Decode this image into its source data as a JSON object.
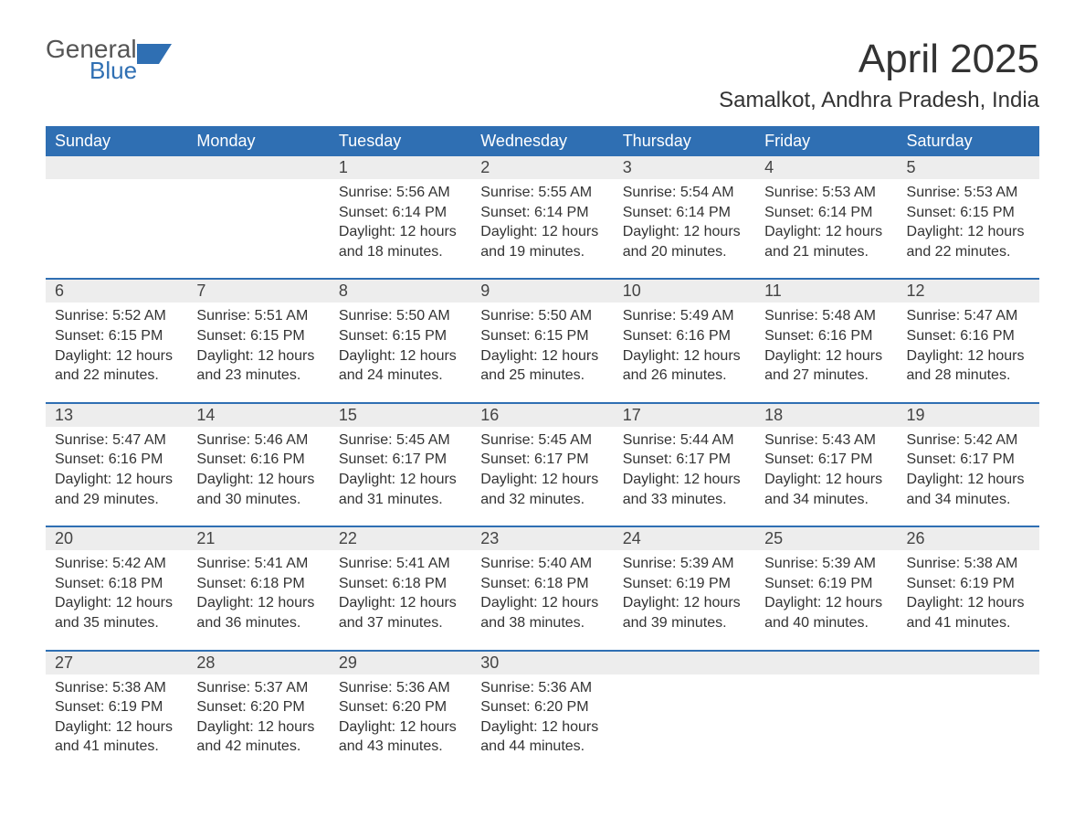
{
  "brand": {
    "line1": "General",
    "line2": "Blue",
    "accent_color": "#2f6fb3",
    "text_color": "#555555"
  },
  "title": "April 2025",
  "location": "Samalkot, Andhra Pradesh, India",
  "colors": {
    "header_bg": "#2f6fb3",
    "header_text": "#ffffff",
    "daynum_bg": "#ededed",
    "row_divider": "#2f6fb3",
    "body_text": "#333333",
    "page_bg": "#ffffff"
  },
  "weekdays": [
    "Sunday",
    "Monday",
    "Tuesday",
    "Wednesday",
    "Thursday",
    "Friday",
    "Saturday"
  ],
  "weeks": [
    [
      null,
      null,
      {
        "n": "1",
        "sunrise": "Sunrise: 5:56 AM",
        "sunset": "Sunset: 6:14 PM",
        "day1": "Daylight: 12 hours",
        "day2": "and 18 minutes."
      },
      {
        "n": "2",
        "sunrise": "Sunrise: 5:55 AM",
        "sunset": "Sunset: 6:14 PM",
        "day1": "Daylight: 12 hours",
        "day2": "and 19 minutes."
      },
      {
        "n": "3",
        "sunrise": "Sunrise: 5:54 AM",
        "sunset": "Sunset: 6:14 PM",
        "day1": "Daylight: 12 hours",
        "day2": "and 20 minutes."
      },
      {
        "n": "4",
        "sunrise": "Sunrise: 5:53 AM",
        "sunset": "Sunset: 6:14 PM",
        "day1": "Daylight: 12 hours",
        "day2": "and 21 minutes."
      },
      {
        "n": "5",
        "sunrise": "Sunrise: 5:53 AM",
        "sunset": "Sunset: 6:15 PM",
        "day1": "Daylight: 12 hours",
        "day2": "and 22 minutes."
      }
    ],
    [
      {
        "n": "6",
        "sunrise": "Sunrise: 5:52 AM",
        "sunset": "Sunset: 6:15 PM",
        "day1": "Daylight: 12 hours",
        "day2": "and 22 minutes."
      },
      {
        "n": "7",
        "sunrise": "Sunrise: 5:51 AM",
        "sunset": "Sunset: 6:15 PM",
        "day1": "Daylight: 12 hours",
        "day2": "and 23 minutes."
      },
      {
        "n": "8",
        "sunrise": "Sunrise: 5:50 AM",
        "sunset": "Sunset: 6:15 PM",
        "day1": "Daylight: 12 hours",
        "day2": "and 24 minutes."
      },
      {
        "n": "9",
        "sunrise": "Sunrise: 5:50 AM",
        "sunset": "Sunset: 6:15 PM",
        "day1": "Daylight: 12 hours",
        "day2": "and 25 minutes."
      },
      {
        "n": "10",
        "sunrise": "Sunrise: 5:49 AM",
        "sunset": "Sunset: 6:16 PM",
        "day1": "Daylight: 12 hours",
        "day2": "and 26 minutes."
      },
      {
        "n": "11",
        "sunrise": "Sunrise: 5:48 AM",
        "sunset": "Sunset: 6:16 PM",
        "day1": "Daylight: 12 hours",
        "day2": "and 27 minutes."
      },
      {
        "n": "12",
        "sunrise": "Sunrise: 5:47 AM",
        "sunset": "Sunset: 6:16 PM",
        "day1": "Daylight: 12 hours",
        "day2": "and 28 minutes."
      }
    ],
    [
      {
        "n": "13",
        "sunrise": "Sunrise: 5:47 AM",
        "sunset": "Sunset: 6:16 PM",
        "day1": "Daylight: 12 hours",
        "day2": "and 29 minutes."
      },
      {
        "n": "14",
        "sunrise": "Sunrise: 5:46 AM",
        "sunset": "Sunset: 6:16 PM",
        "day1": "Daylight: 12 hours",
        "day2": "and 30 minutes."
      },
      {
        "n": "15",
        "sunrise": "Sunrise: 5:45 AM",
        "sunset": "Sunset: 6:17 PM",
        "day1": "Daylight: 12 hours",
        "day2": "and 31 minutes."
      },
      {
        "n": "16",
        "sunrise": "Sunrise: 5:45 AM",
        "sunset": "Sunset: 6:17 PM",
        "day1": "Daylight: 12 hours",
        "day2": "and 32 minutes."
      },
      {
        "n": "17",
        "sunrise": "Sunrise: 5:44 AM",
        "sunset": "Sunset: 6:17 PM",
        "day1": "Daylight: 12 hours",
        "day2": "and 33 minutes."
      },
      {
        "n": "18",
        "sunrise": "Sunrise: 5:43 AM",
        "sunset": "Sunset: 6:17 PM",
        "day1": "Daylight: 12 hours",
        "day2": "and 34 minutes."
      },
      {
        "n": "19",
        "sunrise": "Sunrise: 5:42 AM",
        "sunset": "Sunset: 6:17 PM",
        "day1": "Daylight: 12 hours",
        "day2": "and 34 minutes."
      }
    ],
    [
      {
        "n": "20",
        "sunrise": "Sunrise: 5:42 AM",
        "sunset": "Sunset: 6:18 PM",
        "day1": "Daylight: 12 hours",
        "day2": "and 35 minutes."
      },
      {
        "n": "21",
        "sunrise": "Sunrise: 5:41 AM",
        "sunset": "Sunset: 6:18 PM",
        "day1": "Daylight: 12 hours",
        "day2": "and 36 minutes."
      },
      {
        "n": "22",
        "sunrise": "Sunrise: 5:41 AM",
        "sunset": "Sunset: 6:18 PM",
        "day1": "Daylight: 12 hours",
        "day2": "and 37 minutes."
      },
      {
        "n": "23",
        "sunrise": "Sunrise: 5:40 AM",
        "sunset": "Sunset: 6:18 PM",
        "day1": "Daylight: 12 hours",
        "day2": "and 38 minutes."
      },
      {
        "n": "24",
        "sunrise": "Sunrise: 5:39 AM",
        "sunset": "Sunset: 6:19 PM",
        "day1": "Daylight: 12 hours",
        "day2": "and 39 minutes."
      },
      {
        "n": "25",
        "sunrise": "Sunrise: 5:39 AM",
        "sunset": "Sunset: 6:19 PM",
        "day1": "Daylight: 12 hours",
        "day2": "and 40 minutes."
      },
      {
        "n": "26",
        "sunrise": "Sunrise: 5:38 AM",
        "sunset": "Sunset: 6:19 PM",
        "day1": "Daylight: 12 hours",
        "day2": "and 41 minutes."
      }
    ],
    [
      {
        "n": "27",
        "sunrise": "Sunrise: 5:38 AM",
        "sunset": "Sunset: 6:19 PM",
        "day1": "Daylight: 12 hours",
        "day2": "and 41 minutes."
      },
      {
        "n": "28",
        "sunrise": "Sunrise: 5:37 AM",
        "sunset": "Sunset: 6:20 PM",
        "day1": "Daylight: 12 hours",
        "day2": "and 42 minutes."
      },
      {
        "n": "29",
        "sunrise": "Sunrise: 5:36 AM",
        "sunset": "Sunset: 6:20 PM",
        "day1": "Daylight: 12 hours",
        "day2": "and 43 minutes."
      },
      {
        "n": "30",
        "sunrise": "Sunrise: 5:36 AM",
        "sunset": "Sunset: 6:20 PM",
        "day1": "Daylight: 12 hours",
        "day2": "and 44 minutes."
      },
      null,
      null,
      null
    ]
  ]
}
